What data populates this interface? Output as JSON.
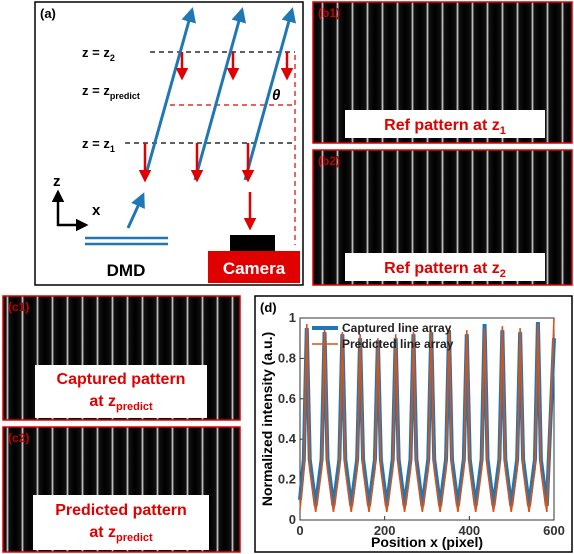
{
  "panel_a": {
    "label": "(a)",
    "z2": {
      "text": "z = z",
      "sub": "2"
    },
    "zpredict": {
      "text": "z = z",
      "sub": "predict"
    },
    "z1": {
      "text": "z = z",
      "sub": "1"
    },
    "theta": "θ",
    "axis_z": "z",
    "axis_x": "x",
    "dmd": "DMD",
    "camera": "Camera"
  },
  "panel_b1": {
    "label": "(b1)",
    "caption": {
      "text": "Ref pattern at z",
      "sub": "1"
    }
  },
  "panel_b2": {
    "label": "(b2)",
    "caption": {
      "text": "Ref pattern at z",
      "sub": "2"
    }
  },
  "panel_c1": {
    "label": "(c1)",
    "caption_line1": "Captured pattern",
    "caption_line2": {
      "text": "at z",
      "sub": "predict"
    }
  },
  "panel_c2": {
    "label": "(c2)",
    "caption_line1": "Predicted pattern",
    "caption_line2": {
      "text": "at z",
      "sub": "predict"
    }
  },
  "panel_d": {
    "label": "(d)",
    "chart_data": {
      "type": "line",
      "x_label": "Position x (pixel)",
      "y_label": "Normalized intensity (a.u.)",
      "x": [
        0,
        9,
        16,
        23,
        37,
        51,
        58,
        65,
        79,
        93,
        100,
        107,
        121,
        135,
        142,
        149,
        163,
        177,
        184,
        191,
        205,
        219,
        226,
        233,
        247,
        261,
        268,
        275,
        289,
        303,
        310,
        317,
        331,
        345,
        352,
        359,
        373,
        387,
        394,
        401,
        415,
        429,
        436,
        443,
        457,
        471,
        478,
        485,
        499,
        513,
        520,
        527,
        541,
        555,
        562,
        569,
        583,
        600
      ],
      "series": [
        {
          "name": "Captured line array",
          "color": "#1f77b4",
          "values": [
            0.1,
            0.3,
            0.95,
            0.3,
            0.07,
            0.3,
            0.93,
            0.3,
            0.07,
            0.3,
            0.92,
            0.3,
            0.07,
            0.3,
            0.9,
            0.3,
            0.07,
            0.3,
            0.89,
            0.3,
            0.07,
            0.3,
            0.9,
            0.3,
            0.07,
            0.3,
            0.92,
            0.3,
            0.07,
            0.3,
            0.93,
            0.3,
            0.07,
            0.3,
            0.94,
            0.3,
            0.07,
            0.3,
            0.92,
            0.3,
            0.07,
            0.3,
            0.97,
            0.3,
            0.07,
            0.3,
            0.94,
            0.3,
            0.07,
            0.3,
            0.93,
            0.3,
            0.07,
            0.3,
            0.98,
            0.3,
            0.07,
            0.9
          ]
        },
        {
          "name": "Predicted line array",
          "color": "#d95319",
          "values": [
            0.05,
            0.25,
            0.97,
            0.25,
            0.04,
            0.25,
            0.95,
            0.25,
            0.04,
            0.25,
            0.93,
            0.25,
            0.04,
            0.25,
            0.92,
            0.25,
            0.04,
            0.25,
            0.9,
            0.25,
            0.04,
            0.25,
            0.92,
            0.25,
            0.04,
            0.25,
            0.93,
            0.25,
            0.04,
            0.25,
            0.94,
            0.25,
            0.04,
            0.25,
            0.95,
            0.25,
            0.04,
            0.25,
            0.94,
            0.25,
            0.04,
            0.25,
            0.95,
            0.25,
            0.04,
            0.25,
            0.96,
            0.25,
            0.04,
            0.25,
            0.95,
            0.25,
            0.04,
            0.25,
            0.97,
            0.25,
            0.04,
            1.0
          ]
        }
      ],
      "xlim": [
        0,
        600
      ],
      "xticks": [
        0,
        200,
        400,
        600
      ],
      "ylim": [
        0,
        1
      ],
      "yticks": [
        0,
        0.2,
        0.4,
        0.6,
        0.8,
        1
      ],
      "legend": "upper left"
    }
  }
}
